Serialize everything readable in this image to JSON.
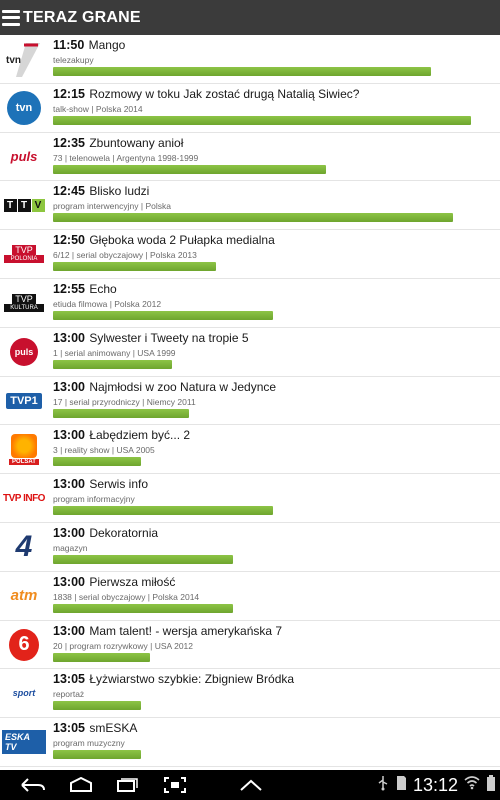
{
  "header": {
    "title": "TERAZ GRANE"
  },
  "programs": [
    {
      "channel_icon": "tvn7-logo",
      "time": "11:50",
      "title": "Mango",
      "meta": "telezakupy",
      "progress": 0.86
    },
    {
      "channel_icon": "tvn-logo",
      "time": "12:15",
      "title": "Rozmowy w toku Jak zostać drugą Natalią Siwiec?",
      "meta": "talk-show | Polska 2014",
      "progress": 0.95
    },
    {
      "channel_icon": "tv-puls-logo",
      "time": "12:35",
      "title": "Zbuntowany anioł",
      "meta": "73 | telenowela | Argentyna 1998-1999",
      "progress": 0.62
    },
    {
      "channel_icon": "ttv-logo",
      "time": "12:45",
      "title": "Blisko ludzi",
      "meta": "program interwencyjny | Polska",
      "progress": 0.91
    },
    {
      "channel_icon": "tvp-polonia-logo",
      "time": "12:50",
      "title": "Głęboka woda 2 Pułapka medialna",
      "meta": "6/12 | serial obyczajowy | Polska 2013",
      "progress": 0.37
    },
    {
      "channel_icon": "tvp-kultura-logo",
      "time": "12:55",
      "title": "Echo",
      "meta": "etiuda filmowa | Polska 2012",
      "progress": 0.5
    },
    {
      "channel_icon": "puls2-logo",
      "time": "13:00",
      "title": "Sylwester i Tweety na tropie 5",
      "meta": "1 | serial animowany | USA 1999",
      "progress": 0.27
    },
    {
      "channel_icon": "tvp1-logo",
      "time": "13:00",
      "title": "Najmłodsi w zoo Natura w Jedynce",
      "meta": "17 | serial przyrodniczy | Niemcy 2011",
      "progress": 0.31
    },
    {
      "channel_icon": "polsat-logo",
      "time": "13:00",
      "title": "Łabędziem być... 2",
      "meta": "3 | reality show | USA 2005",
      "progress": 0.2
    },
    {
      "channel_icon": "tvp-info-logo",
      "time": "13:00",
      "title": "Serwis info",
      "meta": "program informacyjny",
      "progress": 0.5
    },
    {
      "channel_icon": "tv4-logo",
      "time": "13:00",
      "title": "Dekoratornia",
      "meta": "magazyn",
      "progress": 0.41
    },
    {
      "channel_icon": "atm-rozrywka-logo",
      "time": "13:00",
      "title": "Pierwsza miłość",
      "meta": "1838 | serial obyczajowy | Polska 2014",
      "progress": 0.41
    },
    {
      "channel_icon": "tv6-logo",
      "time": "13:00",
      "title": "Mam talent! - wersja amerykańska 7",
      "meta": "20 | program rozrywkowy | USA 2012",
      "progress": 0.22
    },
    {
      "channel_icon": "polsat-sport-news-logo",
      "time": "13:05",
      "title": "Łyżwiarstwo szybkie: Zbigniew Bródka",
      "meta": "reportaż",
      "progress": 0.2
    },
    {
      "channel_icon": "eska-tv-logo",
      "time": "13:05",
      "title": "smESKA",
      "meta": "program muzyczny",
      "progress": 0.2
    }
  ],
  "logo_text": {
    "tvn7": "tvn",
    "tvn": "tvn",
    "tv_puls": "puls",
    "ttv": [
      "T",
      "T",
      "V"
    ],
    "tvp_polonia": [
      "TVP",
      "POLONIA"
    ],
    "tvp_kultura": [
      "TVP",
      "KULTURA"
    ],
    "puls2": "puls",
    "tvp1": "TVP1",
    "polsat": "POLSAT",
    "tvp_info": "TVP INFO",
    "tv4": "4",
    "atm": "atm",
    "tv6": "6",
    "sport": "sport",
    "eska": "ESKA TV"
  },
  "statusbar": {
    "time": "13:12"
  },
  "colors": {
    "header_bg": "#3b3b3b",
    "progress": "#7cb83a",
    "navbar_bg": "#000000"
  }
}
